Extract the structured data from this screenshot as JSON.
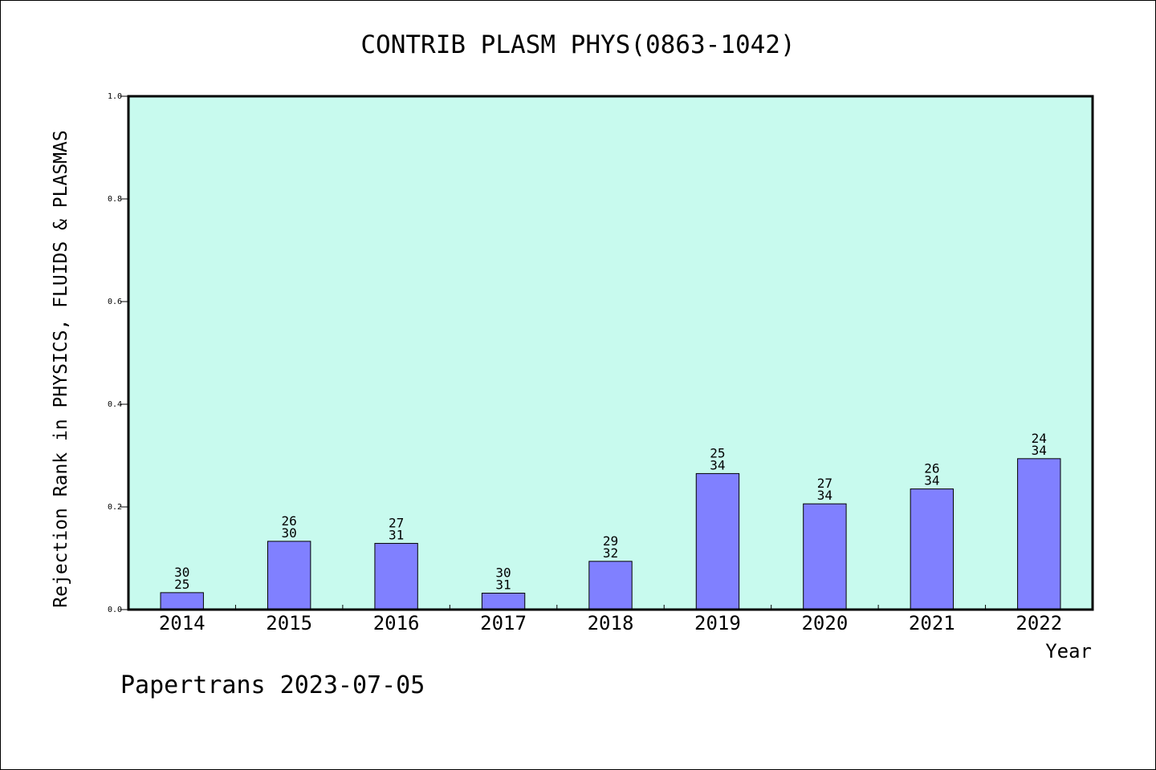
{
  "chart_data": {
    "type": "bar",
    "title": "CONTRIB PLASM PHYS(0863-1042)",
    "xlabel": "Year",
    "ylabel": "Rejection Rank in PHYSICS, FLUIDS & PLASMAS",
    "ylim": [
      0,
      1.0
    ],
    "yticks": [
      "0.0",
      "0.2",
      "0.4",
      "0.6",
      "0.8",
      "1.0"
    ],
    "yticks_values": [
      0,
      0.2,
      0.4,
      0.6,
      0.8,
      1.0
    ],
    "categories": [
      "2014",
      "2015",
      "2016",
      "2017",
      "2018",
      "2019",
      "2020",
      "2021",
      "2022"
    ],
    "values": [
      0.033,
      0.133,
      0.129,
      0.032,
      0.094,
      0.265,
      0.206,
      0.235,
      0.294
    ],
    "labels_top": [
      "30",
      "26",
      "27",
      "30",
      "29",
      "25",
      "27",
      "26",
      "24"
    ],
    "labels_bottom": [
      "25",
      "30",
      "31",
      "31",
      "32",
      "34",
      "34",
      "34",
      "34"
    ],
    "grid": false,
    "colors": {
      "plot_background": "#c8faee",
      "bar_fill": "#8080ff",
      "bar_stroke": "#000000"
    }
  },
  "footer": {
    "text": "Papertrans 2023-07-05"
  }
}
